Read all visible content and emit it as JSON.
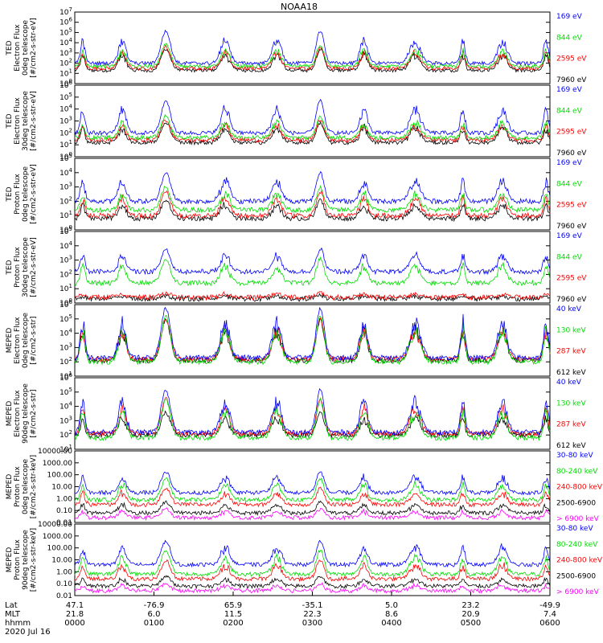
{
  "chart_data": {
    "type": "line",
    "title": "NOAA18",
    "x_axis": {
      "time_ticks": [
        "0000",
        "0100",
        "0200",
        "0300",
        "0400",
        "0500",
        "0600"
      ],
      "lat_ticks": [
        "47.1",
        "-76.9",
        "65.9",
        "-35.1",
        "5.0",
        "23.2",
        "-49.9"
      ],
      "mlt_ticks": [
        "21.8",
        "6.0",
        "11.5",
        "22.3",
        "8.6",
        "20.9",
        "7.4"
      ],
      "row_labels": [
        "Lat",
        "MLT",
        "hhmm"
      ],
      "date": "2020 Jul 16"
    },
    "panels": [
      {
        "ylabel": [
          "TED",
          "Electron Flux",
          "0deg telescope",
          "[#/cm2-s-str-eV]"
        ],
        "log": true,
        "tick_labels": [
          "10^0",
          "10^1",
          "10^2",
          "10^3",
          "10^4",
          "10^5",
          "10^6",
          "10^7"
        ],
        "tick_exps": [
          0,
          1,
          2,
          3,
          4,
          5,
          6,
          7
        ],
        "ylim_exp": [
          0,
          7
        ],
        "series": [
          {
            "name": "7960 eV",
            "color": "#000000",
            "base": 1.3,
            "peak": 3.3
          },
          {
            "name": "2595 eV",
            "color": "#ff0000",
            "base": 1.5,
            "peak": 3.5
          },
          {
            "name": "844 eV",
            "color": "#00dd00",
            "base": 1.7,
            "peak": 3.7
          },
          {
            "name": "169 eV",
            "color": "#0000ff",
            "base": 2.0,
            "peak": 5.0
          }
        ]
      },
      {
        "ylabel": [
          "TED",
          "Electron Flux",
          "30deg telescope",
          "[#/cm2-s-str-eV]"
        ],
        "log": true,
        "tick_labels": [
          "10^0",
          "10^1",
          "10^2",
          "10^3",
          "10^4",
          "10^5",
          "10^6"
        ],
        "tick_exps": [
          0,
          1,
          2,
          3,
          4,
          5,
          6
        ],
        "ylim_exp": [
          0,
          6
        ],
        "series": [
          {
            "name": "7960 eV",
            "color": "#000000",
            "base": 1.2,
            "peak": 2.8
          },
          {
            "name": "2595 eV",
            "color": "#ff0000",
            "base": 1.4,
            "peak": 3.0
          },
          {
            "name": "844 eV",
            "color": "#00dd00",
            "base": 1.6,
            "peak": 3.3
          },
          {
            "name": "169 eV",
            "color": "#0000ff",
            "base": 2.0,
            "peak": 4.6
          }
        ]
      },
      {
        "ylabel": [
          "TED",
          "Proton Flux",
          "0deg telescope",
          "[#/cm2-s-str-eV]"
        ],
        "log": true,
        "tick_labels": [
          "10^0",
          "10^1",
          "10^2",
          "10^3",
          "10^4",
          "10^5"
        ],
        "tick_exps": [
          0,
          1,
          2,
          3,
          4,
          5
        ],
        "ylim_exp": [
          0,
          5
        ],
        "series": [
          {
            "name": "7960 eV",
            "color": "#000000",
            "base": 0.8,
            "peak": 2.0
          },
          {
            "name": "2595 eV",
            "color": "#ff0000",
            "base": 1.0,
            "peak": 2.6
          },
          {
            "name": "844 eV",
            "color": "#00dd00",
            "base": 1.4,
            "peak": 2.9
          },
          {
            "name": "169 eV",
            "color": "#0000ff",
            "base": 2.0,
            "peak": 3.9
          }
        ]
      },
      {
        "ylabel": [
          "TED",
          "Proton Flux",
          "30deg telescope",
          "[#/cm2-s-str-eV]"
        ],
        "log": true,
        "tick_labels": [
          "10^0",
          "10^1",
          "10^2",
          "10^3",
          "10^4",
          "10^5"
        ],
        "tick_exps": [
          0,
          1,
          2,
          3,
          4,
          5
        ],
        "ylim_exp": [
          0,
          5
        ],
        "series": [
          {
            "name": "7960 eV",
            "color": "#000000",
            "base": 0.3,
            "peak": 0.5
          },
          {
            "name": "2595 eV",
            "color": "#ff0000",
            "base": 0.4,
            "peak": 0.7
          },
          {
            "name": "844 eV",
            "color": "#00dd00",
            "base": 1.4,
            "peak": 3.0
          },
          {
            "name": "169 eV",
            "color": "#0000ff",
            "base": 2.2,
            "peak": 3.7
          }
        ]
      },
      {
        "ylabel": [
          "MEPED",
          "Electron Flux",
          "0deg telescope",
          "[#/cm2-s-str]"
        ],
        "log": true,
        "tick_labels": [
          "10^1",
          "10^2",
          "10^3",
          "10^4",
          "10^5",
          "10^6"
        ],
        "tick_exps": [
          1,
          2,
          3,
          4,
          5,
          6
        ],
        "ylim_exp": [
          1,
          6
        ],
        "series": [
          {
            "name": "612 keV",
            "color": "#000000",
            "base": 2.1,
            "peak": 4.8
          },
          {
            "name": "287 keV",
            "color": "#ff0000",
            "base": 2.2,
            "peak": 4.9
          },
          {
            "name": "130 keV",
            "color": "#00dd00",
            "base": 2.0,
            "peak": 5.0
          },
          {
            "name": "40 keV",
            "color": "#0000ff",
            "base": 2.3,
            "peak": 5.6
          }
        ]
      },
      {
        "ylabel": [
          "MEPED",
          "Electron Flux",
          "90deg telescope",
          "[#/cm2-s-str]"
        ],
        "log": true,
        "tick_labels": [
          "10^1",
          "10^2",
          "10^3",
          "10^4",
          "10^5",
          "10^6"
        ],
        "tick_exps": [
          1,
          2,
          3,
          4,
          5,
          6
        ],
        "ylim_exp": [
          1,
          6
        ],
        "series": [
          {
            "name": "612 keV",
            "color": "#000000",
            "base": 2.0,
            "peak": 3.5
          },
          {
            "name": "287 keV",
            "color": "#ff0000",
            "base": 2.1,
            "peak": 4.4
          },
          {
            "name": "130 keV",
            "color": "#00dd00",
            "base": 1.8,
            "peak": 4.3
          },
          {
            "name": "40 keV",
            "color": "#0000ff",
            "base": 2.2,
            "peak": 5.0
          }
        ]
      },
      {
        "ylabel": [
          "MEPED",
          "Proton Flux",
          "0deg telescope",
          "[#/cm2-s-str-keV]"
        ],
        "log": true,
        "tick_labels": [
          "0.01",
          "0.10",
          "1.00",
          "10.00",
          "100.00",
          "1000.00",
          "10000.00"
        ],
        "tick_exps": [
          -2,
          -1,
          0,
          1,
          2,
          3,
          4
        ],
        "ylim_exp": [
          -2,
          4
        ],
        "series": [
          {
            "name": "> 6900 keV",
            "color": "#ff00ff",
            "base": -1.6,
            "peak": -0.9
          },
          {
            "name": "2500-6900",
            "color": "#000000",
            "base": -1.2,
            "peak": -0.3
          },
          {
            "name": "240-800 keV",
            "color": "#ff0000",
            "base": -0.5,
            "peak": 0.8
          },
          {
            "name": "80-240 keV",
            "color": "#00dd00",
            "base": -0.1,
            "peak": 1.6
          },
          {
            "name": "30-80 keV",
            "color": "#0000ff",
            "base": 0.5,
            "peak": 2.2
          }
        ]
      },
      {
        "ylabel": [
          "MEPED",
          "Proton Flux",
          "90deg telescope",
          "[#/cm2-s-str-keV]"
        ],
        "log": true,
        "tick_labels": [
          "0.01",
          "0.10",
          "1.00",
          "10.00",
          "100.00",
          "1000.00",
          "10000.00"
        ],
        "tick_exps": [
          -2,
          -1,
          0,
          1,
          2,
          3,
          4
        ],
        "ylim_exp": [
          -2,
          4
        ],
        "series": [
          {
            "name": "> 6900 keV",
            "color": "#ff00ff",
            "base": -1.6,
            "peak": -1.0
          },
          {
            "name": "2500-6900",
            "color": "#000000",
            "base": -1.2,
            "peak": -0.4
          },
          {
            "name": "240-800 keV",
            "color": "#ff0000",
            "base": -0.6,
            "peak": 0.9
          },
          {
            "name": "80-240 keV",
            "color": "#00dd00",
            "base": -0.2,
            "peak": 1.7
          },
          {
            "name": "30-80 keV",
            "color": "#0000ff",
            "base": 0.6,
            "peak": 2.5
          }
        ]
      }
    ],
    "passes": [
      {
        "t": 0.1,
        "w": 0.06,
        "kind": "polar"
      },
      {
        "t": 0.6,
        "w": 0.1,
        "kind": "polar"
      },
      {
        "t": 1.15,
        "w": 0.12,
        "kind": "saa"
      },
      {
        "t": 1.9,
        "w": 0.12,
        "kind": "polar"
      },
      {
        "t": 2.55,
        "w": 0.12,
        "kind": "polar"
      },
      {
        "t": 3.1,
        "w": 0.1,
        "kind": "saa"
      },
      {
        "t": 3.65,
        "w": 0.1,
        "kind": "polar"
      },
      {
        "t": 4.3,
        "w": 0.14,
        "kind": "polar"
      },
      {
        "t": 4.9,
        "w": 0.06,
        "kind": "polar"
      },
      {
        "t": 5.4,
        "w": 0.12,
        "kind": "polar"
      },
      {
        "t": 5.95,
        "w": 0.06,
        "kind": "polar"
      }
    ]
  }
}
